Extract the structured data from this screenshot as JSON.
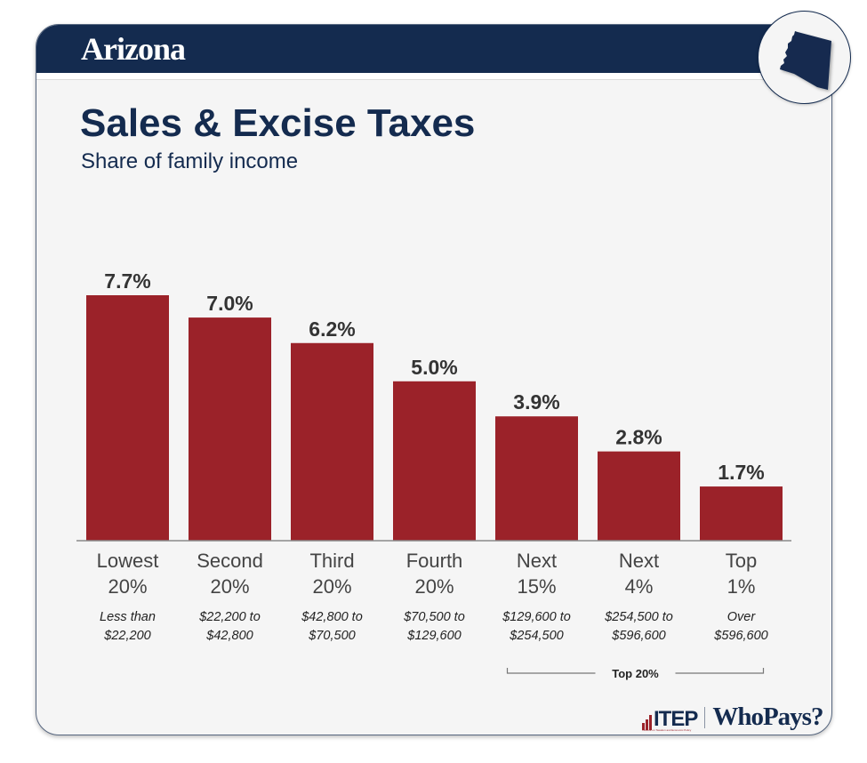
{
  "header": {
    "state_name": "Arizona",
    "state_icon": "arizona-state-silhouette-icon"
  },
  "colors": {
    "navy": "#142b4f",
    "bar": "#9b2229",
    "background": "#f5f5f5"
  },
  "chart_data": {
    "type": "bar",
    "title": "Sales & Excise Taxes",
    "subtitle": "Share of family income",
    "xlabel": "",
    "ylabel": "",
    "ylim": [
      0,
      7.7
    ],
    "grid": false,
    "categories": [
      {
        "line1": "Lowest",
        "line2": "20%",
        "range1": "Less than",
        "range2": "$22,200"
      },
      {
        "line1": "Second",
        "line2": "20%",
        "range1": "$22,200 to",
        "range2": "$42,800"
      },
      {
        "line1": "Third",
        "line2": "20%",
        "range1": "$42,800 to",
        "range2": "$70,500"
      },
      {
        "line1": "Fourth",
        "line2": "20%",
        "range1": "$70,500 to",
        "range2": "$129,600"
      },
      {
        "line1": "Next",
        "line2": "15%",
        "range1": "$129,600 to",
        "range2": "$254,500"
      },
      {
        "line1": "Next",
        "line2": "4%",
        "range1": "$254,500 to",
        "range2": "$596,600"
      },
      {
        "line1": "Top",
        "line2": "1%",
        "range1": "Over",
        "range2": "$596,600"
      }
    ],
    "values": [
      7.7,
      7.0,
      6.2,
      5.0,
      3.9,
      2.8,
      1.7
    ],
    "value_labels": [
      "7.7%",
      "7.0%",
      "6.2%",
      "5.0%",
      "3.9%",
      "2.8%",
      "1.7%"
    ],
    "unit": "%",
    "annotations": [
      {
        "text": "Top 20%",
        "spans_categories": [
          4,
          6
        ]
      }
    ]
  },
  "footer": {
    "itep_label": "ITEP",
    "itep_tagline": "Institute on Taxation and Economic Policy",
    "whopays_label": "WhoPays?"
  }
}
